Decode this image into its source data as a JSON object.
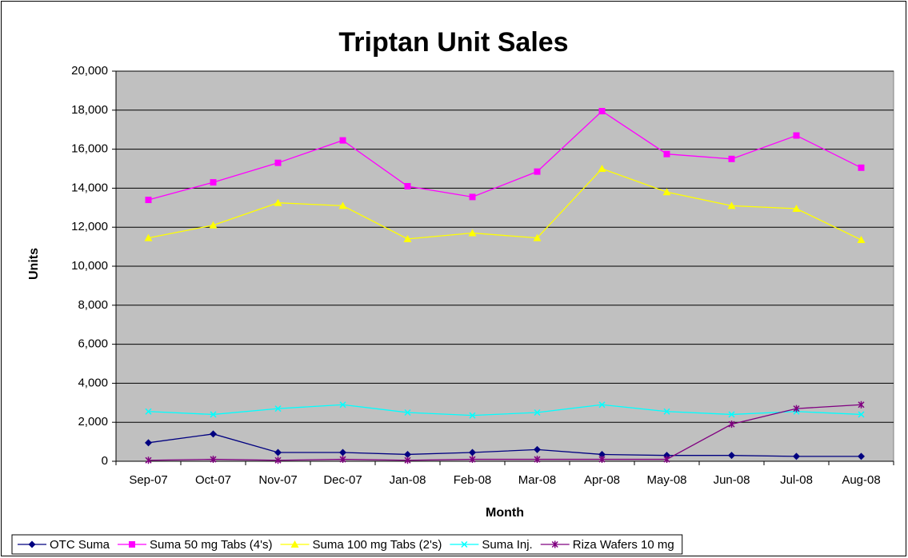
{
  "chart_data": {
    "type": "line",
    "title": "Triptan Unit Sales",
    "xlabel": "Month",
    "ylabel": "Units",
    "categories": [
      "Sep-07",
      "Oct-07",
      "Nov-07",
      "Dec-07",
      "Jan-08",
      "Feb-08",
      "Mar-08",
      "Apr-08",
      "May-08",
      "Jun-08",
      "Jul-08",
      "Aug-08"
    ],
    "series": [
      {
        "name": "OTC Suma",
        "color": "#000080",
        "marker": "diamond",
        "values": [
          950,
          1400,
          450,
          450,
          350,
          450,
          600,
          350,
          300,
          300,
          250,
          250
        ]
      },
      {
        "name": "Suma 50 mg Tabs (4's)",
        "color": "#ff00ff",
        "marker": "square",
        "values": [
          13400,
          14300,
          15300,
          16450,
          14100,
          13550,
          14850,
          17950,
          15750,
          15500,
          16700,
          15050
        ]
      },
      {
        "name": "Suma 100 mg Tabs (2's)",
        "color": "#ffff00",
        "marker": "triangle",
        "values": [
          11450,
          12100,
          13250,
          13100,
          11400,
          11700,
          11450,
          15000,
          13800,
          13100,
          12950,
          11350
        ]
      },
      {
        "name": "Suma Inj.",
        "color": "#00ffff",
        "marker": "x",
        "values": [
          2550,
          2400,
          2700,
          2900,
          2500,
          2350,
          2500,
          2900,
          2550,
          2400,
          2550,
          2400
        ]
      },
      {
        "name": "Riza Wafers 10 mg",
        "color": "#800080",
        "marker": "star",
        "values": [
          50,
          100,
          50,
          100,
          50,
          100,
          100,
          100,
          100,
          1900,
          2700,
          2900
        ]
      }
    ],
    "ylim": [
      0,
      20000
    ],
    "yticks": [
      0,
      {
        "value": 2000,
        "label": "2,000"
      },
      {
        "value": 4000,
        "label": "4,000"
      },
      {
        "value": 6000,
        "label": "6,000"
      },
      {
        "value": 8000,
        "label": "8,000"
      },
      {
        "value": 10000,
        "label": "10,000"
      },
      {
        "value": 12000,
        "label": "12,000"
      },
      {
        "value": 14000,
        "label": "14,000"
      },
      {
        "value": 16000,
        "label": "16,000"
      },
      {
        "value": 18000,
        "label": "18,000"
      },
      {
        "value": 20000,
        "label": "20,000"
      }
    ],
    "grid": true,
    "plot_background": "#c0c0c0",
    "legend": "bottom"
  }
}
